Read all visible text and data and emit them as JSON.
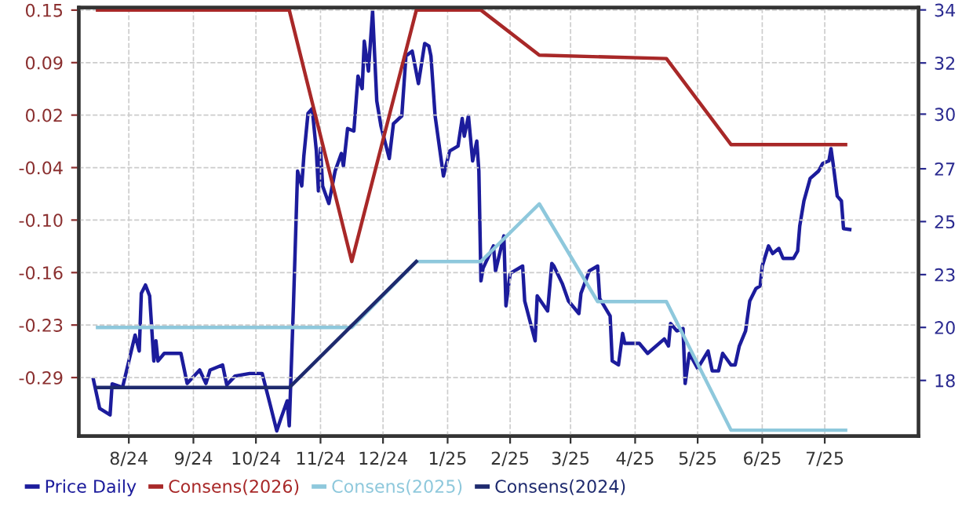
{
  "chart_data": {
    "type": "line",
    "legend": "bottom left",
    "grid": true,
    "marker": "none",
    "line_style": "solid",
    "xlim": [
      "2024-07-23",
      "2025-08-30"
    ],
    "xticks": [
      {
        "value": "2024-08-16",
        "label": "8/24"
      },
      {
        "value": "2024-09-16",
        "label": "9/24"
      },
      {
        "value": "2024-10-16",
        "label": "10/24"
      },
      {
        "value": "2024-11-16",
        "label": "11/24"
      },
      {
        "value": "2024-12-16",
        "label": "12/24"
      },
      {
        "value": "2025-01-16",
        "label": "1/25"
      },
      {
        "value": "2025-02-15",
        "label": "2/25"
      },
      {
        "value": "2025-03-16",
        "label": "3/25"
      },
      {
        "value": "2025-04-16",
        "label": "4/25"
      },
      {
        "value": "2025-05-16",
        "label": "5/25"
      },
      {
        "value": "2025-06-16",
        "label": "6/25"
      },
      {
        "value": "2025-07-16",
        "label": "7/25"
      }
    ],
    "ylim": [
      -0.36,
      0.153
    ],
    "yticks": [
      0.15,
      {
        "value": 0.0871,
        "label": "0.09"
      },
      {
        "value": 0.0243,
        "label": "0.02"
      },
      {
        "value": -0.0386,
        "label": "-0.04"
      },
      {
        "value": -0.1014,
        "label": "-0.10"
      },
      {
        "value": -0.1643,
        "label": "-0.16"
      },
      {
        "value": -0.2271,
        "label": "-0.23"
      },
      -0.29
    ],
    "y2lim": [
      15.6,
      34.1
    ],
    "y2ticks": [
      34,
      {
        "value": 31.71,
        "label": "32"
      },
      {
        "value": 29.5,
        "label": "30"
      },
      {
        "value": 27.14,
        "label": "27"
      },
      {
        "value": 24.86,
        "label": "25"
      },
      {
        "value": 22.57,
        "label": "23"
      },
      {
        "value": 20.29,
        "label": "20"
      },
      18
    ],
    "series": [
      {
        "name": "Price Daily",
        "color": "#1c1c9c",
        "axis": "y2",
        "x": [
          "2024-07-30",
          "2024-08-02",
          "2024-08-07",
          "2024-08-08",
          "2024-08-13",
          "2024-08-19",
          "2024-08-21",
          "2024-08-22",
          "2024-08-24",
          "2024-08-26",
          "2024-08-28",
          "2024-08-29",
          "2024-08-30",
          "2024-09-02",
          "2024-09-10",
          "2024-09-13",
          "2024-09-19",
          "2024-09-22",
          "2024-09-24",
          "2024-09-30",
          "2024-10-02",
          "2024-10-06",
          "2024-10-13",
          "2024-10-19",
          "2024-10-23",
          "2024-10-26",
          "2024-10-28",
          "2024-10-31",
          "2024-11-01",
          "2024-11-03",
          "2024-11-05",
          "2024-11-07",
          "2024-11-08",
          "2024-11-10",
          "2024-11-12",
          "2024-11-14",
          "2024-11-15",
          "2024-11-16",
          "2024-11-17",
          "2024-11-20",
          "2024-11-23",
          "2024-11-26",
          "2024-11-27",
          "2024-11-29",
          "2024-12-02",
          "2024-12-04",
          "2024-12-06",
          "2024-12-07",
          "2024-12-09",
          "2024-12-11",
          "2024-12-13",
          "2024-12-15",
          "2024-12-19",
          "2024-12-21",
          "2024-12-25",
          "2024-12-27",
          "2024-12-30",
          "2025-01-02",
          "2025-01-05",
          "2025-01-07",
          "2025-01-08",
          "2025-01-10",
          "2025-01-14",
          "2025-01-17",
          "2025-01-21",
          "2025-01-23",
          "2025-01-24",
          "2025-01-26",
          "2025-01-28",
          "2025-01-30",
          "2025-01-31",
          "2025-02-01",
          "2025-02-02",
          "2025-02-07",
          "2025-02-08",
          "2025-02-12",
          "2025-02-13",
          "2025-02-15",
          "2025-02-21",
          "2025-02-22",
          "2025-02-27",
          "2025-02-28",
          "2025-03-05",
          "2025-03-07",
          "2025-03-08",
          "2025-03-12",
          "2025-03-15",
          "2025-03-20",
          "2025-03-21",
          "2025-03-25",
          "2025-03-29",
          "2025-03-30",
          "2025-04-04",
          "2025-04-05",
          "2025-04-08",
          "2025-04-10",
          "2025-04-11",
          "2025-04-18",
          "2025-04-22",
          "2025-04-30",
          "2025-05-02",
          "2025-05-03",
          "2025-05-06",
          "2025-05-09",
          "2025-05-10",
          "2025-05-12",
          "2025-05-16",
          "2025-05-21",
          "2025-05-23",
          "2025-05-26",
          "2025-05-28",
          "2025-06-01",
          "2025-06-03",
          "2025-06-05",
          "2025-06-08",
          "2025-06-10",
          "2025-06-13",
          "2025-06-15",
          "2025-06-16",
          "2025-06-19",
          "2025-06-21",
          "2025-06-24",
          "2025-06-26",
          "2025-07-01",
          "2025-07-03",
          "2025-07-04",
          "2025-07-06",
          "2025-07-09",
          "2025-07-13",
          "2025-07-15",
          "2025-07-18",
          "2025-07-19",
          "2025-07-20",
          "2025-07-22",
          "2025-07-24",
          "2025-07-25",
          "2025-07-28"
        ],
        "values": [
          18.04,
          16.79,
          16.51,
          17.85,
          17.7,
          19.96,
          19.27,
          21.76,
          22.12,
          21.65,
          18.84,
          19.71,
          18.84,
          19.17,
          19.17,
          17.87,
          18.45,
          17.87,
          18.45,
          18.67,
          17.81,
          18.19,
          18.3,
          18.3,
          16.9,
          15.82,
          16.36,
          17.12,
          16.04,
          21.22,
          27.04,
          26.4,
          27.69,
          29.53,
          29.74,
          27.91,
          26.18,
          28.02,
          26.4,
          25.64,
          27.04,
          27.8,
          27.26,
          28.88,
          28.77,
          31.14,
          30.6,
          32.65,
          31.36,
          33.95,
          30.07,
          28.99,
          27.58,
          29.09,
          29.42,
          32.01,
          32.22,
          30.82,
          32.55,
          32.44,
          32.01,
          29.42,
          26.83,
          27.91,
          28.12,
          29.31,
          28.55,
          29.42,
          27.48,
          28.34,
          27.04,
          22.3,
          22.84,
          23.81,
          22.73,
          24.24,
          21.22,
          22.62,
          22.94,
          21.43,
          19.71,
          21.65,
          21.0,
          23.05,
          22.94,
          22.19,
          21.43,
          20.89,
          21.76,
          22.73,
          22.94,
          21.54,
          20.78,
          18.84,
          18.67,
          20.03,
          19.6,
          19.6,
          19.17,
          19.79,
          19.49,
          20.46,
          20.14,
          20.24,
          17.87,
          19.17,
          18.52,
          19.27,
          18.41,
          18.41,
          19.17,
          18.67,
          18.67,
          19.49,
          20.14,
          21.43,
          21.97,
          22.08,
          22.94,
          23.81,
          23.48,
          23.7,
          23.27,
          23.27,
          23.59,
          24.67,
          25.75,
          26.72,
          27.04,
          27.37,
          27.48,
          28.01,
          27.37,
          25.96,
          25.75,
          24.56,
          24.52
        ]
      },
      {
        "name": "Consens(2026)",
        "color": "#a82828",
        "x": [
          "2024-08-01",
          "2024-11-01",
          "2024-12-01",
          "2025-01-01",
          "2025-02-01",
          "2025-03-01",
          "2025-05-01",
          "2025-06-01",
          "2025-07-26"
        ],
        "values": [
          0.15,
          0.15,
          -0.151,
          0.15,
          0.15,
          0.096,
          0.092,
          -0.011,
          -0.011
        ]
      },
      {
        "name": "Consens(2025)",
        "color": "#8ec8dc",
        "x": [
          "2024-08-01",
          "2024-12-01",
          "2025-01-01",
          "2025-02-01",
          "2025-03-01",
          "2025-03-29",
          "2025-05-01",
          "2025-06-01",
          "2025-07-26"
        ],
        "values": [
          -0.23,
          -0.23,
          -0.151,
          -0.151,
          -0.082,
          -0.199,
          -0.199,
          -0.353,
          -0.353
        ]
      },
      {
        "name": "Consens(2024)",
        "color": "#1e2a6e",
        "x": [
          "2024-08-01",
          "2024-11-01",
          "2025-01-01"
        ],
        "values": [
          -0.302,
          -0.302,
          -0.151
        ]
      }
    ]
  }
}
